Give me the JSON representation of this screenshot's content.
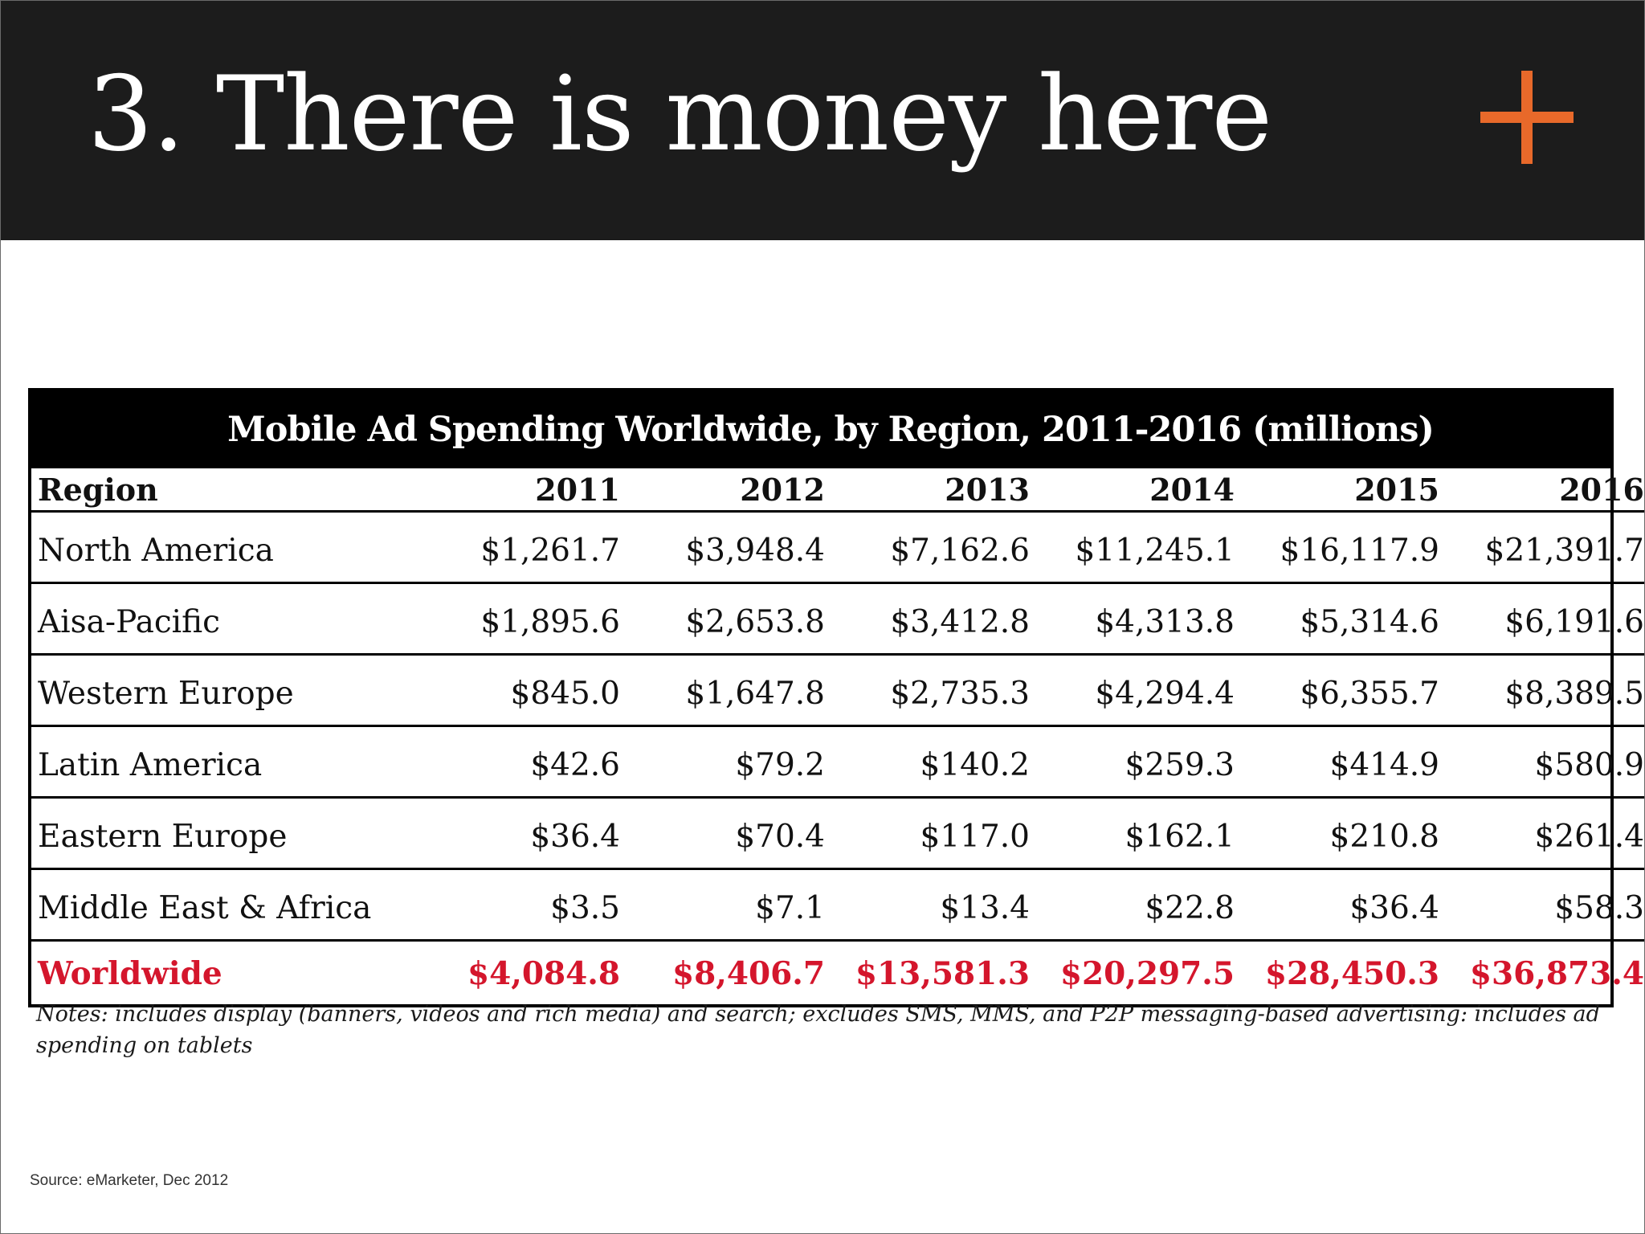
{
  "slide": {
    "title": "3. There is money here",
    "icon": "plus-icon",
    "accent_color": "#e8692a",
    "header_bg": "#1c1c1c"
  },
  "table": {
    "title": "Mobile Ad Spending Worldwide, by Region, 2011-2016 (millions)",
    "columns": [
      "Region",
      "2011",
      "2012",
      "2013",
      "2014",
      "2015",
      "2016"
    ],
    "rows": [
      [
        "North America",
        "$1,261.7",
        "$3,948.4",
        "$7,162.6",
        "$11,245.1",
        "$16,117.9",
        "$21,391.7"
      ],
      [
        "Aisa-Pacific",
        "$1,895.6",
        "$2,653.8",
        "$3,412.8",
        "$4,313.8",
        "$5,314.6",
        "$6,191.6"
      ],
      [
        "Western Europe",
        "$845.0",
        "$1,647.8",
        "$2,735.3",
        "$4,294.4",
        "$6,355.7",
        "$8,389.5"
      ],
      [
        "Latin America",
        "$42.6",
        "$79.2",
        "$140.2",
        "$259.3",
        "$414.9",
        "$580.9"
      ],
      [
        "Eastern Europe",
        "$36.4",
        "$70.4",
        "$117.0",
        "$162.1",
        "$210.8",
        "$261.4"
      ],
      [
        "Middle East & Africa",
        "$3.5",
        "$7.1",
        "$13.4",
        "$22.8",
        "$36.4",
        "$58.3"
      ],
      [
        "Worldwide",
        "$4,084.8",
        "$8,406.7",
        "$13,581.3",
        "$20,297.5",
        "$28,450.3",
        "$36,873.4"
      ]
    ],
    "total_row_color": "#d4162c"
  },
  "notes": "Notes: includes display (banners, videos and rich media) and search; excludes SMS, MMS, and P2P messaging-based advertising: includes ad spending on tablets",
  "source": "Source: eMarketer, Dec 2012"
}
